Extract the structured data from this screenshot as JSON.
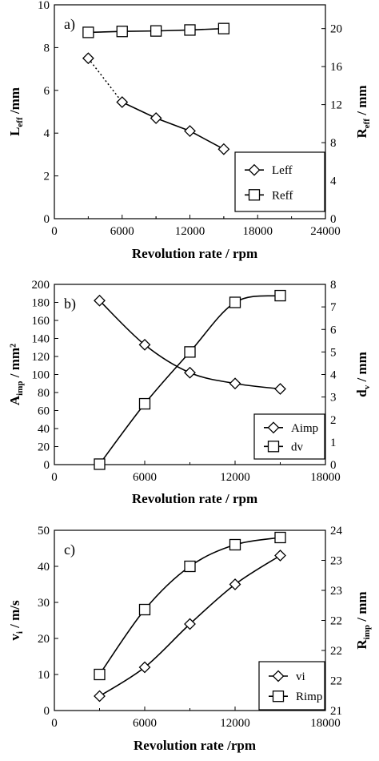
{
  "chart_data": [
    {
      "panel_label": "a)",
      "type": "line",
      "xlabel": "Revolution rate / rpm",
      "x_ticks": [
        "0",
        "6000",
        "12000",
        "18000",
        "24000"
      ],
      "xlim": [
        0,
        24000
      ],
      "ylabel_left": {
        "main": "L",
        "sub": "eff",
        "rest": " /mm"
      },
      "ylim_left": [
        0,
        10
      ],
      "y_ticks_left": [
        "0",
        "2",
        "4",
        "6",
        "8",
        "10"
      ],
      "ylabel_right": {
        "main": "R",
        "sub": "eff",
        "rest": " / mm"
      },
      "ylim_right": [
        0,
        22.5
      ],
      "y_ticks_right": [
        "0",
        "4",
        "8",
        "12",
        "16",
        "20"
      ],
      "legend_position": "bottom-right",
      "series": [
        {
          "name": "Leff",
          "marker": "diamond",
          "axis": "left",
          "x": [
            3000,
            6000,
            9000,
            12000,
            15000
          ],
          "y": [
            7.5,
            5.45,
            4.7,
            4.1,
            3.25
          ],
          "first_segment_dotted": true
        },
        {
          "name": "Reff",
          "marker": "square",
          "axis": "right",
          "x": [
            3000,
            6000,
            9000,
            12000,
            15000
          ],
          "y": [
            19.6,
            19.7,
            19.75,
            19.85,
            20.0
          ]
        }
      ]
    },
    {
      "panel_label": "b)",
      "type": "line",
      "xlabel": "Revolution rate / rpm",
      "x_ticks": [
        "0",
        "6000",
        "12000",
        "18000"
      ],
      "xlim": [
        0,
        18000
      ],
      "ylabel_left": {
        "main": "A",
        "sub": "imp",
        "rest": " / mm²"
      },
      "ylim_left": [
        0,
        200
      ],
      "y_ticks_left": [
        "0",
        "20",
        "40",
        "60",
        "80",
        "100",
        "120",
        "140",
        "160",
        "180",
        "200"
      ],
      "ylabel_right": {
        "main": "d",
        "sub": "v",
        "rest": " / mm"
      },
      "ylim_right": [
        0,
        8
      ],
      "y_ticks_right": [
        "0",
        "1",
        "2",
        "3",
        "4",
        "5",
        "6",
        "7",
        "8"
      ],
      "legend_position": "bottom-right",
      "series": [
        {
          "name": "Aimp",
          "marker": "diamond",
          "axis": "left",
          "x": [
            3000,
            6000,
            9000,
            12000,
            15000
          ],
          "y": [
            182,
            133,
            102,
            90,
            84
          ]
        },
        {
          "name": "dv",
          "marker": "square",
          "axis": "right",
          "x": [
            3000,
            6000,
            9000,
            12000,
            15000
          ],
          "y": [
            0.02,
            2.7,
            5.0,
            7.2,
            7.5
          ]
        }
      ]
    },
    {
      "panel_label": "c)",
      "type": "line",
      "xlabel": "Revolution rate /rpm",
      "x_ticks": [
        "0",
        "6000",
        "12000",
        "18000"
      ],
      "xlim": [
        0,
        18000
      ],
      "ylabel_left": {
        "main": "v",
        "sub": "i",
        "rest": " / m/s"
      },
      "ylim_left": [
        0,
        50
      ],
      "y_ticks_left": [
        "0",
        "10",
        "20",
        "30",
        "40",
        "50"
      ],
      "ylabel_right": {
        "main": "R",
        "sub": "imp",
        "rest": " / mm"
      },
      "ylim_right": [
        21,
        24
      ],
      "y_ticks_right": [
        "21",
        "22",
        "22",
        "22",
        "23",
        "23",
        "24"
      ],
      "legend_position": "bottom-right",
      "series": [
        {
          "name": "vi",
          "marker": "diamond",
          "axis": "left",
          "x": [
            3000,
            6000,
            9000,
            12000,
            15000
          ],
          "y": [
            4,
            12,
            24,
            35,
            43
          ]
        },
        {
          "name": "Rimp",
          "marker": "square",
          "axis": "right",
          "x": [
            3000,
            6000,
            9000,
            12000,
            15000
          ],
          "y": [
            21.6,
            22.68,
            23.4,
            23.76,
            23.88
          ]
        }
      ]
    }
  ]
}
